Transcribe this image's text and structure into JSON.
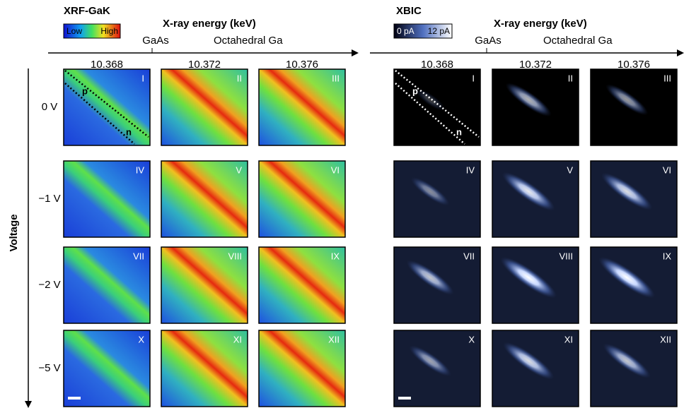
{
  "xrf": {
    "title": "XRF-GaK",
    "colorbar": {
      "low": "Low",
      "high": "High"
    },
    "axis_title": "X-ray energy (keV)",
    "annotations": [
      "GaAs",
      "Octahedral Ga"
    ],
    "energies": [
      "10.368",
      "10.372",
      "10.376"
    ],
    "panels": [
      [
        "I",
        "II",
        "III"
      ],
      [
        "IV",
        "V",
        "VI"
      ],
      [
        "VII",
        "VIII",
        "IX"
      ],
      [
        "X",
        "XI",
        "XII"
      ]
    ],
    "region_labels": [
      "p",
      "n"
    ]
  },
  "xbic": {
    "title": "XBIC",
    "colorbar": {
      "low": "0 pA",
      "high": "12 pA"
    },
    "axis_title": "X-ray energy (keV)",
    "annotations": [
      "GaAs",
      "Octahedral Ga"
    ],
    "energies": [
      "10.368",
      "10.372",
      "10.376"
    ],
    "panels": [
      [
        "I",
        "II",
        "III"
      ],
      [
        "IV",
        "V",
        "VI"
      ],
      [
        "VII",
        "VIII",
        "IX"
      ],
      [
        "X",
        "XI",
        "XII"
      ]
    ],
    "region_labels": [
      "p",
      "n"
    ]
  },
  "voltage_axis": {
    "title": "Voltage",
    "labels": [
      "0 V",
      "−1 V",
      "−2 V",
      "−5 V"
    ]
  }
}
